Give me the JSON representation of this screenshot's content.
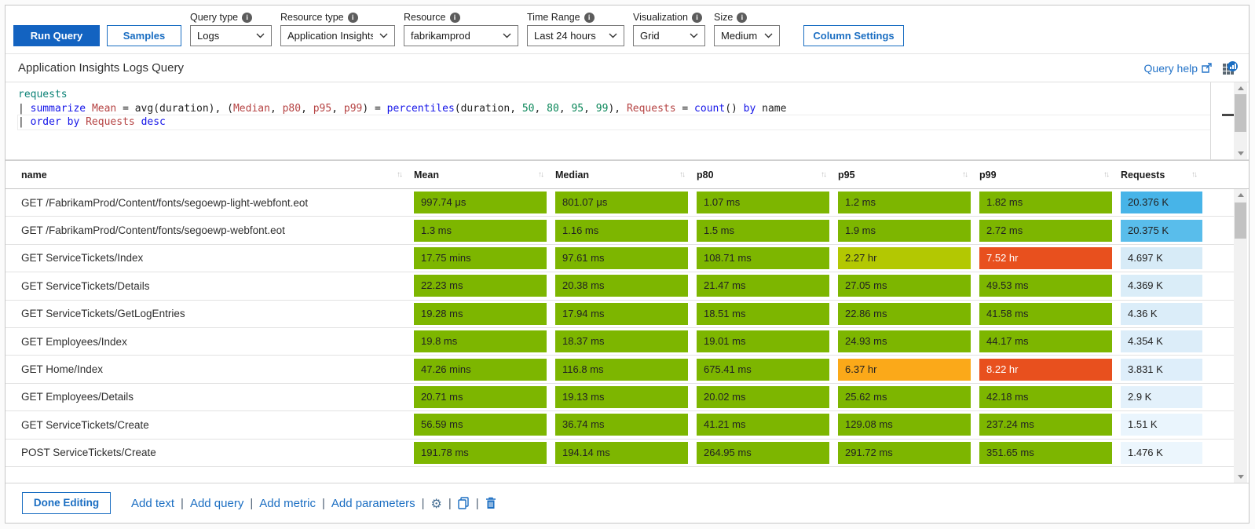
{
  "toolbar": {
    "run_query_label": "Run Query",
    "samples_label": "Samples",
    "dropdowns": [
      {
        "label": "Query type",
        "value": "Logs",
        "w": "w-qt"
      },
      {
        "label": "Resource type",
        "value": "Application Insights",
        "w": "w-rt"
      },
      {
        "label": "Resource",
        "value": "fabrikamprod",
        "w": "w-r"
      },
      {
        "label": "Time Range",
        "value": "Last 24 hours",
        "w": "w-tr"
      },
      {
        "label": "Visualization",
        "value": "Grid",
        "w": "w-v"
      },
      {
        "label": "Size",
        "value": "Medium",
        "w": "w-s"
      }
    ],
    "column_settings_label": "Column Settings"
  },
  "query_section": {
    "title": "Application Insights Logs Query",
    "help_link_label": "Query help",
    "icons": [
      "external-link-icon",
      "grid-visualization-icon"
    ]
  },
  "query_editor": {
    "lines": [
      {
        "current": false,
        "tokens": [
          {
            "t": "requests",
            "c": "tbl"
          }
        ]
      },
      {
        "current": false,
        "tokens": [
          {
            "t": "| ",
            "c": "plain"
          },
          {
            "t": "summarize",
            "c": "kw"
          },
          {
            "t": " ",
            "c": "plain"
          },
          {
            "t": "Mean",
            "c": "red"
          },
          {
            "t": " = ",
            "c": "plain"
          },
          {
            "t": "avg(duration), (",
            "c": "plain"
          },
          {
            "t": "Median",
            "c": "red"
          },
          {
            "t": ", ",
            "c": "plain"
          },
          {
            "t": "p80",
            "c": "red"
          },
          {
            "t": ", ",
            "c": "plain"
          },
          {
            "t": "p95",
            "c": "red"
          },
          {
            "t": ", ",
            "c": "plain"
          },
          {
            "t": "p99",
            "c": "red"
          },
          {
            "t": ") = ",
            "c": "plain"
          },
          {
            "t": "percentiles",
            "c": "kw"
          },
          {
            "t": "(duration, ",
            "c": "plain"
          },
          {
            "t": "50",
            "c": "num"
          },
          {
            "t": ", ",
            "c": "plain"
          },
          {
            "t": "80",
            "c": "num"
          },
          {
            "t": ", ",
            "c": "plain"
          },
          {
            "t": "95",
            "c": "num"
          },
          {
            "t": ", ",
            "c": "plain"
          },
          {
            "t": "99",
            "c": "num"
          },
          {
            "t": "), ",
            "c": "plain"
          },
          {
            "t": "Requests",
            "c": "red"
          },
          {
            "t": " = ",
            "c": "plain"
          },
          {
            "t": "count",
            "c": "kw"
          },
          {
            "t": "() ",
            "c": "plain"
          },
          {
            "t": "by",
            "c": "kw"
          },
          {
            "t": " name",
            "c": "plain"
          }
        ]
      },
      {
        "current": true,
        "tokens": [
          {
            "t": "| ",
            "c": "plain"
          },
          {
            "t": "order by",
            "c": "kw"
          },
          {
            "t": " ",
            "c": "plain"
          },
          {
            "t": "Requests",
            "c": "red"
          },
          {
            "t": " ",
            "c": "plain"
          },
          {
            "t": "desc",
            "c": "kw"
          }
        ]
      }
    ]
  },
  "colors": {
    "green": "#7db600",
    "yellowGreen": "#b3c802",
    "orange": "#fba919",
    "red": "#e8501e"
  },
  "table": {
    "columns": [
      "name",
      "Mean",
      "Median",
      "p80",
      "p95",
      "p99",
      "Requests"
    ],
    "rows": [
      {
        "name": "GET /FabrikamProd/Content/fonts/segoewp-light-webfont.eot",
        "cells": [
          {
            "v": "997.74 μs",
            "c": "green"
          },
          {
            "v": "801.07 μs",
            "c": "green"
          },
          {
            "v": "1.07 ms",
            "c": "green"
          },
          {
            "v": "1.2 ms",
            "c": "green"
          },
          {
            "v": "1.82 ms",
            "c": "green"
          }
        ],
        "requests": {
          "v": "20.376 K",
          "bg": "#47b4e8"
        }
      },
      {
        "name": "GET /FabrikamProd/Content/fonts/segoewp-webfont.eot",
        "cells": [
          {
            "v": "1.3 ms",
            "c": "green"
          },
          {
            "v": "1.16 ms",
            "c": "green"
          },
          {
            "v": "1.5 ms",
            "c": "green"
          },
          {
            "v": "1.9 ms",
            "c": "green"
          },
          {
            "v": "2.72 ms",
            "c": "green"
          }
        ],
        "requests": {
          "v": "20.375 K",
          "bg": "#59bdeb"
        }
      },
      {
        "name": "GET ServiceTickets/Index",
        "cells": [
          {
            "v": "17.75 mins",
            "c": "green"
          },
          {
            "v": "97.61 ms",
            "c": "green"
          },
          {
            "v": "108.71 ms",
            "c": "green"
          },
          {
            "v": "2.27 hr",
            "c": "yellowGreen"
          },
          {
            "v": "7.52 hr",
            "c": "red"
          }
        ],
        "requests": {
          "v": "4.697 K",
          "bg": "#d7ebf7"
        }
      },
      {
        "name": "GET ServiceTickets/Details",
        "cells": [
          {
            "v": "22.23 ms",
            "c": "green"
          },
          {
            "v": "20.38 ms",
            "c": "green"
          },
          {
            "v": "21.47 ms",
            "c": "green"
          },
          {
            "v": "27.05 ms",
            "c": "green"
          },
          {
            "v": "49.53 ms",
            "c": "green"
          }
        ],
        "requests": {
          "v": "4.369 K",
          "bg": "#daedf8"
        }
      },
      {
        "name": "GET ServiceTickets/GetLogEntries",
        "cells": [
          {
            "v": "19.28 ms",
            "c": "green"
          },
          {
            "v": "17.94 ms",
            "c": "green"
          },
          {
            "v": "18.51 ms",
            "c": "green"
          },
          {
            "v": "22.86 ms",
            "c": "green"
          },
          {
            "v": "41.58 ms",
            "c": "green"
          }
        ],
        "requests": {
          "v": "4.36 K",
          "bg": "#dbedf9"
        }
      },
      {
        "name": "GET Employees/Index",
        "cells": [
          {
            "v": "19.8 ms",
            "c": "green"
          },
          {
            "v": "18.37 ms",
            "c": "green"
          },
          {
            "v": "19.01 ms",
            "c": "green"
          },
          {
            "v": "24.93 ms",
            "c": "green"
          },
          {
            "v": "44.17 ms",
            "c": "green"
          }
        ],
        "requests": {
          "v": "4.354 K",
          "bg": "#dcedf9"
        }
      },
      {
        "name": "GET Home/Index",
        "cells": [
          {
            "v": "47.26 mins",
            "c": "green"
          },
          {
            "v": "116.8 ms",
            "c": "green"
          },
          {
            "v": "675.41 ms",
            "c": "green"
          },
          {
            "v": "6.37 hr",
            "c": "orange"
          },
          {
            "v": "8.22 hr",
            "c": "red"
          }
        ],
        "requests": {
          "v": "3.831 K",
          "bg": "#deeefa"
        }
      },
      {
        "name": "GET Employees/Details",
        "cells": [
          {
            "v": "20.71 ms",
            "c": "green"
          },
          {
            "v": "19.13 ms",
            "c": "green"
          },
          {
            "v": "20.02 ms",
            "c": "green"
          },
          {
            "v": "25.62 ms",
            "c": "green"
          },
          {
            "v": "42.18 ms",
            "c": "green"
          }
        ],
        "requests": {
          "v": "2.9 K",
          "bg": "#e3f1fb"
        }
      },
      {
        "name": "GET ServiceTickets/Create",
        "cells": [
          {
            "v": "56.59 ms",
            "c": "green"
          },
          {
            "v": "36.74 ms",
            "c": "green"
          },
          {
            "v": "41.21 ms",
            "c": "green"
          },
          {
            "v": "129.08 ms",
            "c": "green"
          },
          {
            "v": "237.24 ms",
            "c": "green"
          }
        ],
        "requests": {
          "v": "1.51 K",
          "bg": "#eaf5fd"
        }
      },
      {
        "name": "POST ServiceTickets/Create",
        "cells": [
          {
            "v": "191.78 ms",
            "c": "green"
          },
          {
            "v": "194.14 ms",
            "c": "green"
          },
          {
            "v": "264.95 ms",
            "c": "green"
          },
          {
            "v": "291.72 ms",
            "c": "green"
          },
          {
            "v": "351.65 ms",
            "c": "green"
          }
        ],
        "requests": {
          "v": "1.476 K",
          "bg": "#ecf6fd"
        }
      }
    ]
  },
  "footer": {
    "done_editing_label": "Done Editing",
    "links": [
      "Add text",
      "Add query",
      "Add metric",
      "Add parameters"
    ],
    "icons": [
      "settings-gear-icon",
      "copy-icon",
      "trash-icon"
    ]
  }
}
